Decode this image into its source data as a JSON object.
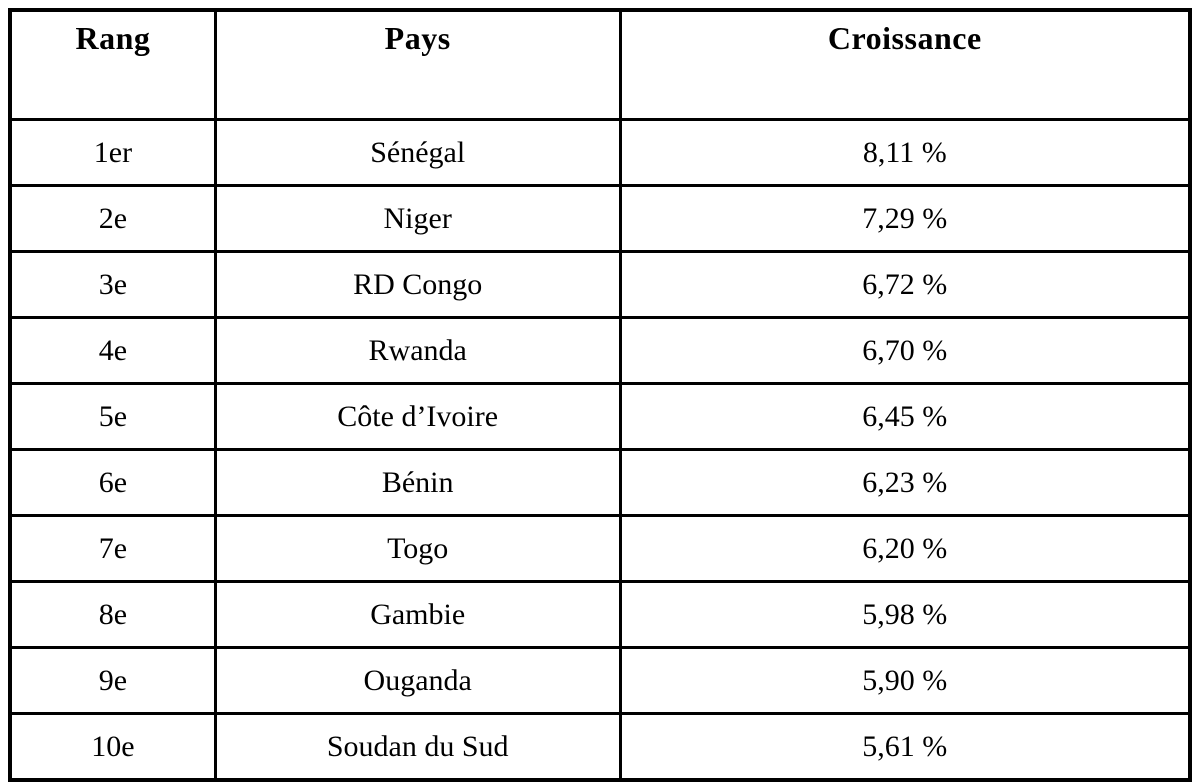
{
  "colors": {
    "border": "#000000",
    "background": "#ffffff",
    "text": "#000000"
  },
  "table": {
    "columns": [
      "Rang",
      "Pays",
      "Croissance"
    ],
    "rows": [
      {
        "rank": "1er",
        "country": "Sénégal",
        "growth": "8,11 %"
      },
      {
        "rank": "2e",
        "country": "Niger",
        "growth": "7,29 %"
      },
      {
        "rank": "3e",
        "country": "RD Congo",
        "growth": "6,72 %"
      },
      {
        "rank": "4e",
        "country": "Rwanda",
        "growth": "6,70 %"
      },
      {
        "rank": "5e",
        "country": "Côte d’Ivoire",
        "growth": "6,45 %"
      },
      {
        "rank": "6e",
        "country": "Bénin",
        "growth": "6,23 %"
      },
      {
        "rank": "7e",
        "country": "Togo",
        "growth": "6,20 %"
      },
      {
        "rank": "8e",
        "country": "Gambie",
        "growth": "5,98 %"
      },
      {
        "rank": "9e",
        "country": "Ouganda",
        "growth": "5,90 %"
      },
      {
        "rank": "10e",
        "country": "Soudan du Sud",
        "growth": "5,61 %"
      }
    ]
  }
}
